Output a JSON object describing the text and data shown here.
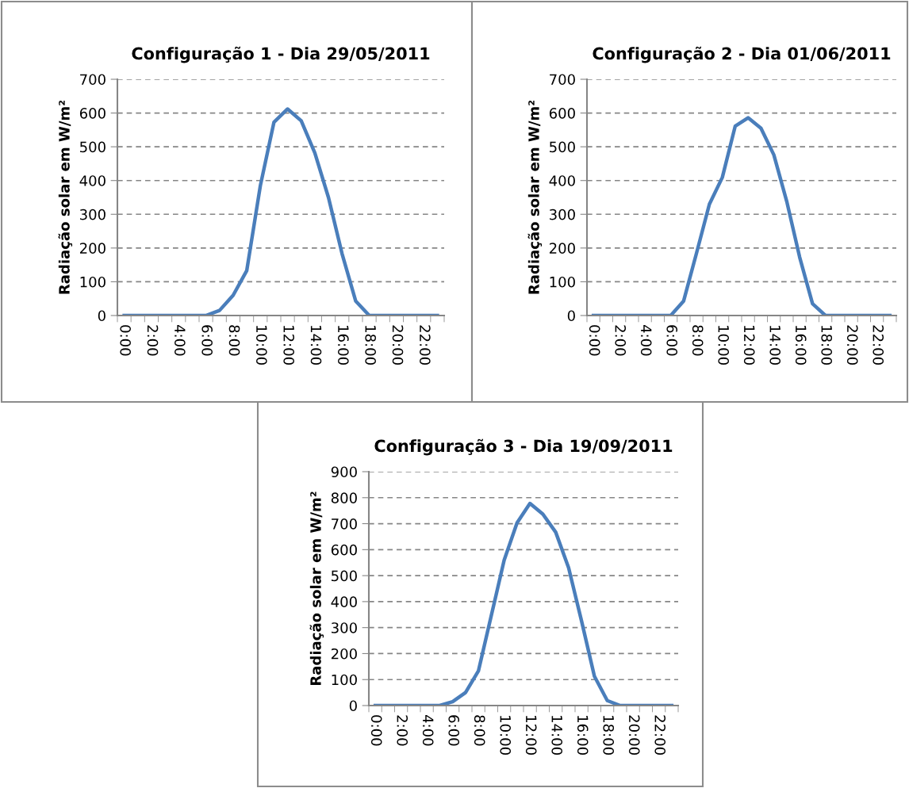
{
  "chart_data": [
    {
      "type": "line",
      "title": "Configuração 1 - Dia 29/05/2011",
      "ylabel": "Radiação solar em W/m²",
      "categories": [
        "0:00",
        null,
        "2:00",
        null,
        "4:00",
        null,
        "6:00",
        null,
        "8:00",
        null,
        "10:00",
        null,
        "12:00",
        null,
        "14:00",
        null,
        "16:00",
        null,
        "18:00",
        null,
        "20:00",
        null,
        "22:00",
        null
      ],
      "series": [
        {
          "color": "#4a7ebb",
          "values": [
            0,
            0,
            0,
            0,
            0,
            0,
            0,
            15,
            60,
            133,
            385,
            573,
            612,
            577,
            482,
            350,
            183,
            43,
            0,
            0,
            0,
            0,
            0,
            0
          ]
        }
      ],
      "ylim": [
        0,
        700
      ],
      "yticks": [
        0,
        100,
        200,
        300,
        400,
        500,
        600,
        700
      ],
      "grid": "y",
      "marker": "none"
    },
    {
      "type": "line",
      "title": "Configuração 2 - Dia 01/06/2011",
      "ylabel": "Radiação solar em W/m²",
      "categories": [
        "0:00",
        null,
        "2:00",
        null,
        "4:00",
        null,
        "6:00",
        null,
        "8:00",
        null,
        "10:00",
        null,
        "12:00",
        null,
        "14:00",
        null,
        "16:00",
        null,
        "18:00",
        null,
        "20:00",
        null,
        "22:00",
        null
      ],
      "series": [
        {
          "color": "#4a7ebb",
          "values": [
            0,
            0,
            0,
            0,
            0,
            0,
            0,
            43,
            185,
            330,
            409,
            561,
            586,
            555,
            476,
            338,
            173,
            35,
            0,
            0,
            0,
            0,
            0,
            0
          ]
        }
      ],
      "ylim": [
        0,
        700
      ],
      "yticks": [
        0,
        100,
        200,
        300,
        400,
        500,
        600,
        700
      ],
      "grid": "y",
      "marker": "none"
    },
    {
      "type": "line",
      "title": "Configuração 3 - Dia 19/09/2011",
      "ylabel": "Radiação solar em W/m²",
      "categories": [
        "0:00",
        null,
        "2:00",
        null,
        "4:00",
        null,
        "6:00",
        null,
        "8:00",
        null,
        "10:00",
        null,
        "12:00",
        null,
        "14:00",
        null,
        "16:00",
        null,
        "18:00",
        null,
        "20:00",
        null,
        "22:00",
        null
      ],
      "series": [
        {
          "color": "#4a7ebb",
          "values": [
            0,
            0,
            0,
            0,
            0,
            0,
            15,
            50,
            133,
            346,
            560,
            703,
            778,
            737,
            667,
            530,
            326,
            113,
            19,
            0,
            0,
            0,
            0,
            0
          ]
        }
      ],
      "ylim": [
        0,
        900
      ],
      "yticks": [
        0,
        100,
        200,
        300,
        400,
        500,
        600,
        700,
        800,
        900
      ],
      "grid": "y",
      "marker": "none"
    }
  ]
}
